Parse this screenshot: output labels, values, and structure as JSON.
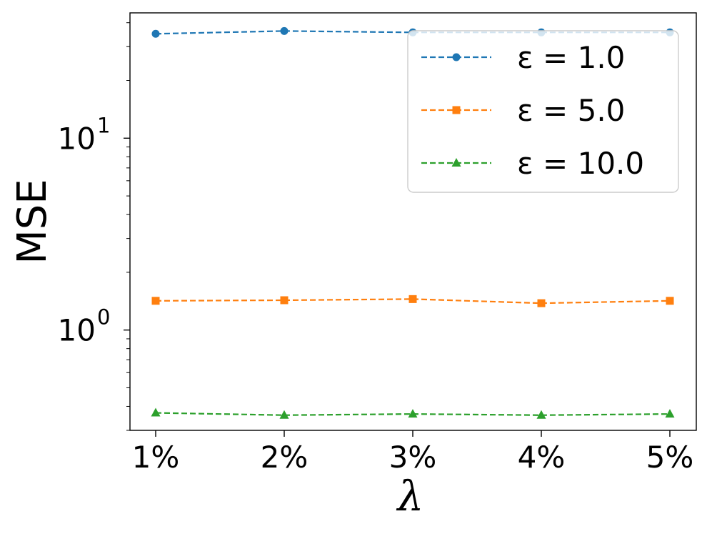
{
  "chart_data": {
    "type": "line",
    "xlabel": "λ",
    "ylabel": "MSE",
    "yscale": "log",
    "ylim": [
      0.3,
      45
    ],
    "grid": false,
    "legend_position": "top-right",
    "categories": [
      "1%",
      "2%",
      "3%",
      "4%",
      "5%"
    ],
    "y_major_ticks": [
      {
        "value": 1,
        "base": "10",
        "exponent": "0"
      },
      {
        "value": 10,
        "base": "10",
        "exponent": "1"
      }
    ],
    "series": [
      {
        "name": "ε = 1.0",
        "color": "#1f77b4",
        "marker": "circle",
        "linestyle": "dashed",
        "values": [
          35.0,
          36.2,
          35.6,
          35.6,
          35.6
        ]
      },
      {
        "name": "ε = 5.0",
        "color": "#ff7f0e",
        "marker": "square",
        "linestyle": "dashed",
        "values": [
          1.42,
          1.43,
          1.45,
          1.38,
          1.42
        ]
      },
      {
        "name": "ε = 10.0",
        "color": "#2ca02c",
        "marker": "triangle",
        "linestyle": "dashed",
        "values": [
          0.37,
          0.36,
          0.365,
          0.36,
          0.365
        ]
      }
    ]
  }
}
